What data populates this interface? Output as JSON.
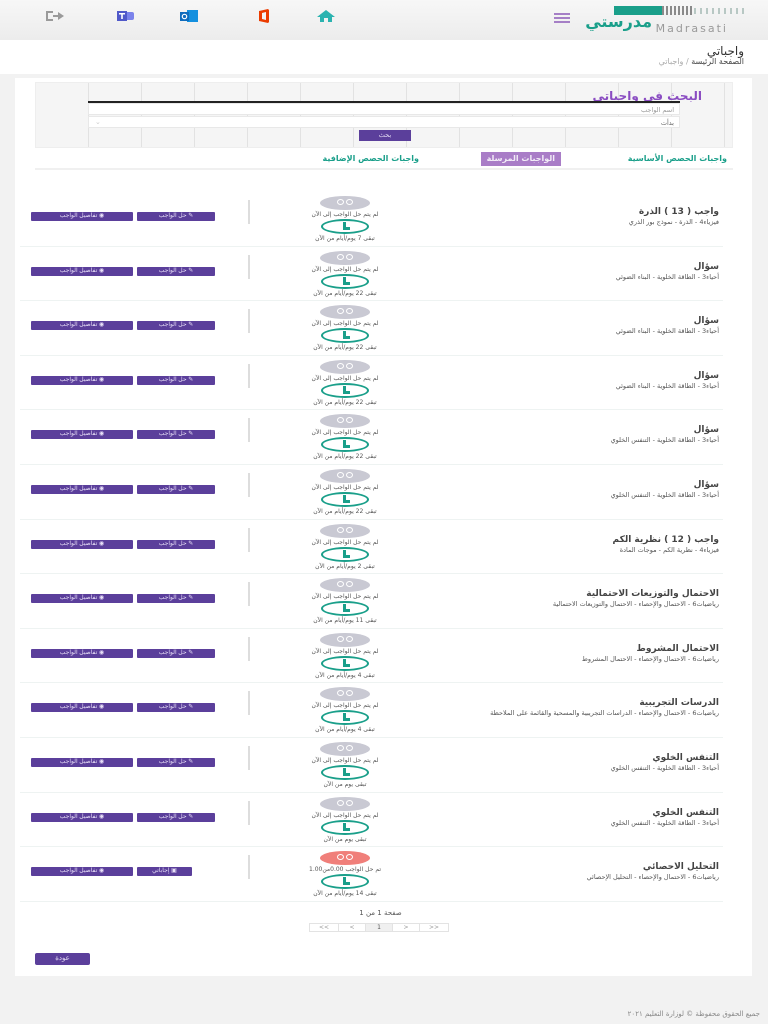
{
  "topbar": {
    "logo_ar": "مدرستي",
    "logo_en": "Madrasati",
    "icons": [
      "menu-icon",
      "home-icon",
      "office-icon",
      "outlook-icon",
      "teams-icon",
      "logout-icon"
    ],
    "colors": {
      "teal": "#1a9f8a",
      "purple": "#5b3f9b",
      "orange": "#eb3c00",
      "outlook": "#0f6cbd",
      "teams": "#5059c9"
    }
  },
  "header": {
    "title": "واجباتي",
    "breadcrumb": {
      "home": "الصفحة الرئيسة",
      "sep": "/",
      "current": "واجباتي"
    }
  },
  "search": {
    "title": "البحث في واجباتي",
    "name_placeholder": "اسم الواجب",
    "select_value": "بدأت",
    "button": "بحث"
  },
  "tabs": [
    {
      "label": "واجبات الحصص الأساسية",
      "active": false
    },
    {
      "label": "الواجبات المرسلة",
      "active": true
    },
    {
      "label": "واجبات الحصص الإضافية",
      "active": false
    }
  ],
  "homework": [
    {
      "title": "واجب ( 13 ) الذرة",
      "subtitle": "فيزياء4 - الذرة - نموذج بور الذري",
      "status": "لم يتم حل الواجب إلى الآن",
      "remaining": "تبقى 7 يوم/أيام من الآن",
      "solved": false,
      "primary_btn": "حل الواجب",
      "details_btn": "تفاصيل الواجب"
    },
    {
      "title": "سؤال",
      "subtitle": "أحياء3 - الطاقة الخلوية - البناء الضوئي",
      "status": "لم يتم حل الواجب إلى الآن",
      "remaining": "تبقى 22 يوم/أيام من الآن",
      "solved": false,
      "primary_btn": "حل الواجب",
      "details_btn": "تفاصيل الواجب"
    },
    {
      "title": "سؤال",
      "subtitle": "أحياء3 - الطاقة الخلوية - البناء الضوئي",
      "status": "لم يتم حل الواجب إلى الآن",
      "remaining": "تبقى 22 يوم/أيام من الآن",
      "solved": false,
      "primary_btn": "حل الواجب",
      "details_btn": "تفاصيل الواجب"
    },
    {
      "title": "سؤال",
      "subtitle": "أحياء3 - الطاقة الخلوية - البناء الضوئي",
      "status": "لم يتم حل الواجب إلى الآن",
      "remaining": "تبقى 22 يوم/أيام من الآن",
      "solved": false,
      "primary_btn": "حل الواجب",
      "details_btn": "تفاصيل الواجب"
    },
    {
      "title": "سؤال",
      "subtitle": "أحياء3 - الطاقة الخلوية - التنفس الخلوي",
      "status": "لم يتم حل الواجب إلى الآن",
      "remaining": "تبقى 22 يوم/أيام من الآن",
      "solved": false,
      "primary_btn": "حل الواجب",
      "details_btn": "تفاصيل الواجب"
    },
    {
      "title": "سؤال",
      "subtitle": "أحياء3 - الطاقة الخلوية - التنفس الخلوي",
      "status": "لم يتم حل الواجب إلى الآن",
      "remaining": "تبقى 22 يوم/أيام من الآن",
      "solved": false,
      "primary_btn": "حل الواجب",
      "details_btn": "تفاصيل الواجب"
    },
    {
      "title": "واجب ( 12 ) نظرية الكم",
      "subtitle": "فيزياء4 - نظرية الكم - موجات المادة",
      "status": "لم يتم حل الواجب إلى الآن",
      "remaining": "تبقى 2 يوم/أيام من الآن",
      "solved": false,
      "primary_btn": "حل الواجب",
      "details_btn": "تفاصيل الواجب"
    },
    {
      "title": "الاحتمال والتوزيعات الاحتمالية",
      "subtitle": "رياضيات6 - الاحتمال والإحصاء - الاحتمال والتوزيعات الاحتمالية",
      "status": "لم يتم حل الواجب إلى الآن",
      "remaining": "تبقى 11 يوم/أيام من الآن",
      "solved": false,
      "primary_btn": "حل الواجب",
      "details_btn": "تفاصيل الواجب"
    },
    {
      "title": "الاحتمال المشروط",
      "subtitle": "رياضيات6 - الاحتمال والإحصاء - الاحتمال المشروط",
      "status": "لم يتم حل الواجب إلى الآن",
      "remaining": "تبقى 4 يوم/أيام من الآن",
      "solved": false,
      "primary_btn": "حل الواجب",
      "details_btn": "تفاصيل الواجب"
    },
    {
      "title": "الدرسات التجريبية",
      "subtitle": "رياضيات6 - الاحتمال والإحصاء - الدراسات التجريبية والمسحية والقائمة على الملاحظة",
      "status": "لم يتم حل الواجب إلى الآن",
      "remaining": "تبقى 4 يوم/أيام من الآن",
      "solved": false,
      "primary_btn": "حل الواجب",
      "details_btn": "تفاصيل الواجب"
    },
    {
      "title": "التنفس الخلوي",
      "subtitle": "أحياء3 - الطاقة الخلوية - التنفس الخلوي",
      "status": "لم يتم حل الواجب إلى الآن",
      "remaining": "تبقى يوم من الآن",
      "solved": false,
      "primary_btn": "حل الواجب",
      "details_btn": "تفاصيل الواجب"
    },
    {
      "title": "التنفس الخلوي",
      "subtitle": "أحياء3 - الطاقة الخلوية - التنفس الخلوي",
      "status": "لم يتم حل الواجب إلى الآن",
      "remaining": "تبقى يوم من الآن",
      "solved": false,
      "primary_btn": "حل الواجب",
      "details_btn": "تفاصيل الواجب"
    },
    {
      "title": "التحليل الاحصائي",
      "subtitle": "رياضيات6 - الاحتمال والإحصاء - التحليل الإحصائي",
      "status": "تم حل الواجب 0.00من1.00",
      "remaining": "تبقى 14 يوم/أيام من الآن",
      "solved": true,
      "primary_btn": "إجاباتي",
      "details_btn": "تفاصيل الواجب"
    }
  ],
  "pagination": {
    "label": "صفحة 1 من 1",
    "buttons": [
      "<<",
      "<",
      "1",
      ">",
      ">>"
    ],
    "current": "1"
  },
  "back_button": "عودة",
  "footer": "جميع الحقوق محفوظة © لوزارة التعليم ٢٠٢١"
}
